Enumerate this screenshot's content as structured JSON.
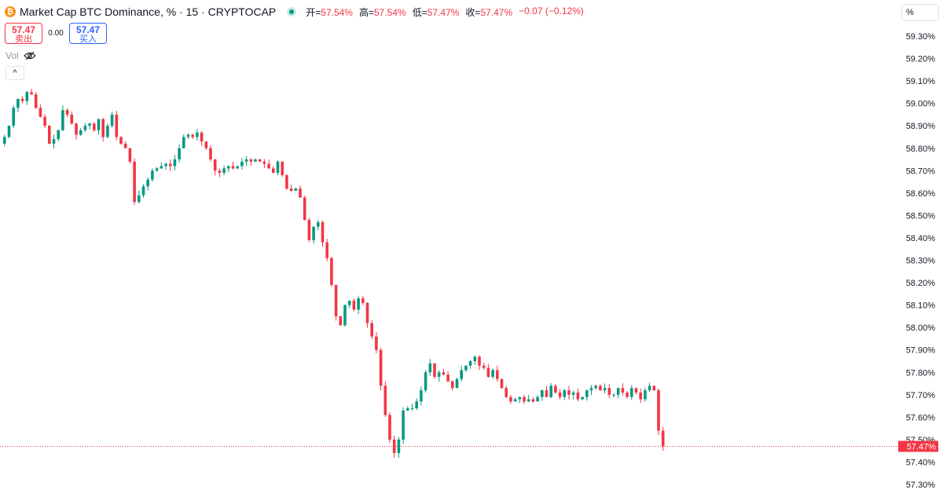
{
  "header": {
    "coin_glyph": "₿",
    "title": "Market Cap BTC Dominance, % · 15 · CRYPTOCAP",
    "ohlc": [
      {
        "key": "开=",
        "value": "57.54%"
      },
      {
        "key": "高=",
        "value": "57.54%"
      },
      {
        "key": "低=",
        "value": "57.47%"
      },
      {
        "key": "收=",
        "value": "57.47%"
      }
    ],
    "change": "−0.07 (−0.12%)"
  },
  "trade": {
    "sell_price": "57.47",
    "sell_label": "卖出",
    "spread": "0.00",
    "buy_price": "57.47",
    "buy_label": "买入"
  },
  "volume": {
    "label": "Vol"
  },
  "controls": {
    "collapse_glyph": "^",
    "unit_label": "%"
  },
  "price_badge": "57.47%",
  "colors": {
    "up": "#089981",
    "down": "#f23645",
    "accent": "#2962ff",
    "grid": "#f0f3fa",
    "axis_text": "#131722"
  },
  "icons": [
    "bitcoin-icon",
    "live-status-icon",
    "eye-hidden-icon",
    "chevron-up-icon"
  ],
  "chart_data": {
    "type": "candlestick",
    "title": "Market Cap BTC Dominance, % · 15 · CRYPTOCAP",
    "y_ticks": [
      "59.30%",
      "59.20%",
      "59.10%",
      "59.00%",
      "58.90%",
      "58.80%",
      "58.70%",
      "58.60%",
      "58.50%",
      "58.40%",
      "58.30%",
      "58.20%",
      "58.10%",
      "58.00%",
      "57.90%",
      "57.80%",
      "57.70%",
      "57.60%",
      "57.50%",
      "57.40%",
      "57.30%"
    ],
    "ylim": [
      57.3,
      59.3
    ],
    "last_price": 57.47,
    "grid": false,
    "close_path": [
      58.82,
      58.85,
      58.9,
      58.98,
      59.02,
      59.01,
      59.05,
      59.04,
      58.98,
      58.94,
      58.9,
      58.82,
      58.84,
      58.88,
      58.97,
      58.95,
      58.91,
      58.86,
      58.88,
      58.9,
      58.91,
      58.88,
      58.93,
      58.85,
      58.9,
      58.95,
      58.85,
      58.82,
      58.8,
      58.74,
      58.56,
      58.59,
      58.63,
      58.66,
      58.7,
      58.71,
      58.72,
      58.73,
      58.72,
      58.75,
      58.8,
      58.85,
      58.86,
      58.85,
      58.87,
      58.83,
      58.8,
      58.75,
      58.7,
      58.69,
      58.71,
      58.72,
      58.71,
      58.72,
      58.74,
      58.75,
      58.74,
      58.75,
      58.74,
      58.73,
      58.71,
      58.69,
      58.74,
      58.68,
      58.62,
      58.61,
      58.62,
      58.58,
      58.48,
      58.39,
      58.45,
      58.47,
      58.38,
      58.31,
      58.19,
      58.05,
      58.01,
      58.1,
      58.12,
      58.08,
      58.13,
      58.11,
      58.02,
      57.96,
      57.9,
      57.74,
      57.61,
      57.5,
      57.44,
      57.5,
      57.63,
      57.64,
      57.64,
      57.67,
      57.72,
      57.8,
      57.84,
      57.78,
      57.8,
      57.79,
      57.76,
      57.73,
      57.77,
      57.81,
      57.83,
      57.85,
      57.87,
      57.83,
      57.82,
      57.78,
      57.81,
      57.77,
      57.73,
      57.69,
      57.67,
      57.68,
      57.69,
      57.67,
      57.68,
      57.67,
      57.69,
      57.72,
      57.69,
      57.74,
      57.71,
      57.69,
      57.72,
      57.7,
      57.71,
      57.68,
      57.69,
      57.72,
      57.73,
      57.74,
      57.72,
      57.73,
      57.7,
      57.7,
      57.73,
      57.71,
      57.69,
      57.73,
      57.71,
      57.68,
      57.72,
      57.74,
      57.72,
      57.54,
      57.47
    ]
  }
}
